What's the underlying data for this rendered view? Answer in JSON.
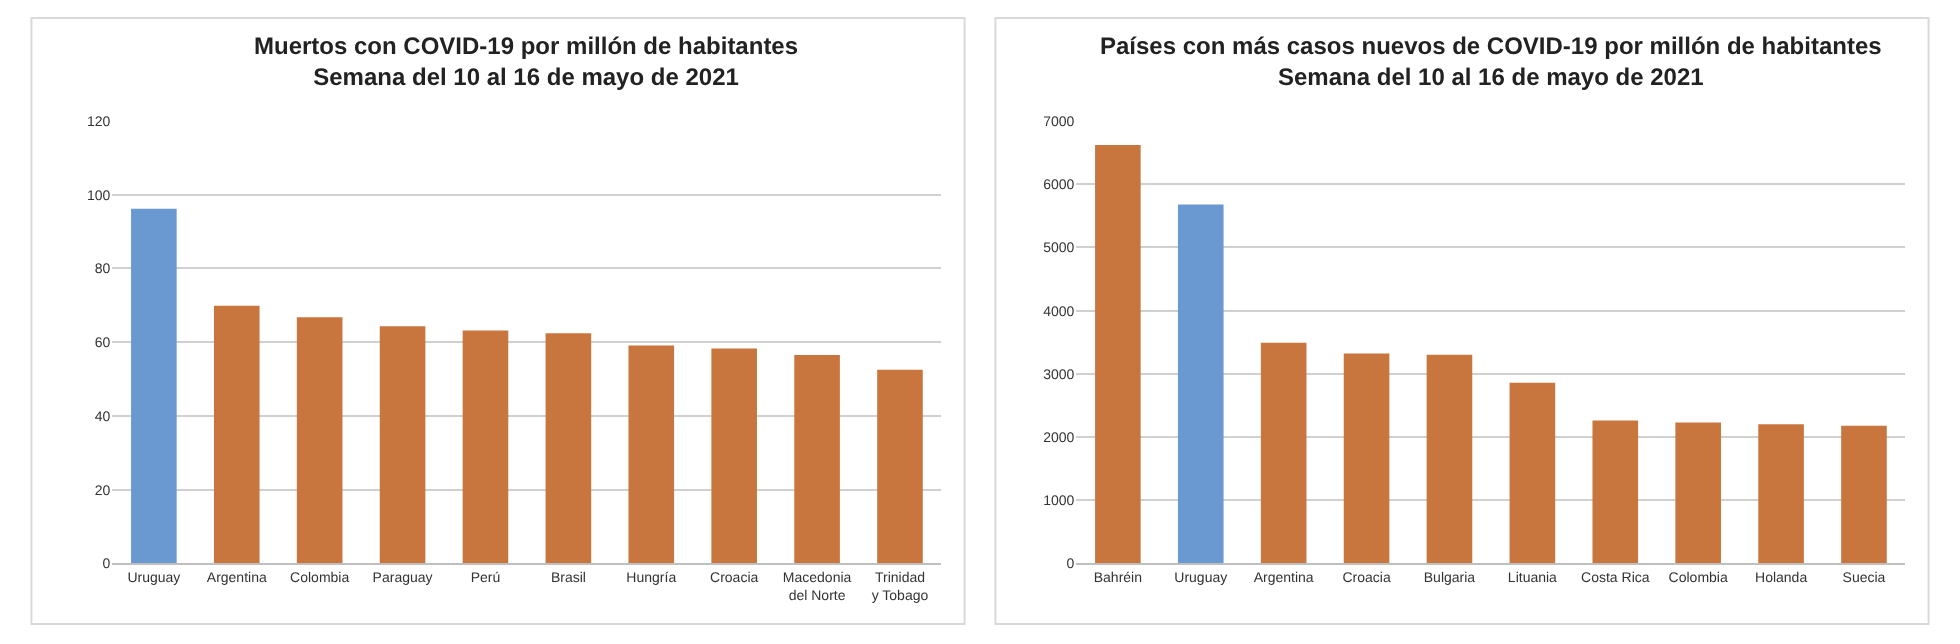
{
  "chart_data": [
    {
      "type": "bar",
      "title": "Muertos con COVID-19 por millón de habitantes\nSemana del 10 al 16 de mayo de 2021",
      "categories": [
        "Uruguay",
        "Argentina",
        "Colombia",
        "Paraguay",
        "Perú",
        "Brasil",
        "Hungría",
        "Croacia",
        "Macedonia del Norte",
        "Trinidad y Tobago"
      ],
      "values": [
        96.2,
        69.9,
        66.8,
        64.3,
        63.2,
        62.4,
        59.1,
        58.3,
        56.5,
        52.5
      ],
      "colors": [
        "#6a98d0",
        "#c8763e",
        "#c8763e",
        "#c8763e",
        "#c8763e",
        "#c8763e",
        "#c8763e",
        "#c8763e",
        "#c8763e",
        "#c8763e"
      ],
      "ylim": [
        0,
        120
      ],
      "yticks": [
        0,
        20,
        40,
        60,
        80,
        100,
        120
      ],
      "grid": "y"
    },
    {
      "type": "bar",
      "title": "Países con más casos nuevos de COVID-19 por millón de habitantes\nSemana del 10 al 16 de mayo de 2021",
      "categories": [
        "Bahréin",
        "Uruguay",
        "Argentina",
        "Croacia",
        "Bulgaria",
        "Lituania",
        "Costa Rica",
        "Colombia",
        "Holanda",
        "Suecia"
      ],
      "values": [
        6620,
        5680,
        3490,
        3320,
        3300,
        2860,
        2260,
        2230,
        2200,
        2180
      ],
      "colors": [
        "#c8763e",
        "#6a98d0",
        "#c8763e",
        "#c8763e",
        "#c8763e",
        "#c8763e",
        "#c8763e",
        "#c8763e",
        "#c8763e",
        "#c8763e"
      ],
      "ylim": [
        0,
        7000
      ],
      "yticks": [
        0,
        1000,
        2000,
        3000,
        4000,
        5000,
        6000,
        7000
      ],
      "grid": "y"
    }
  ]
}
